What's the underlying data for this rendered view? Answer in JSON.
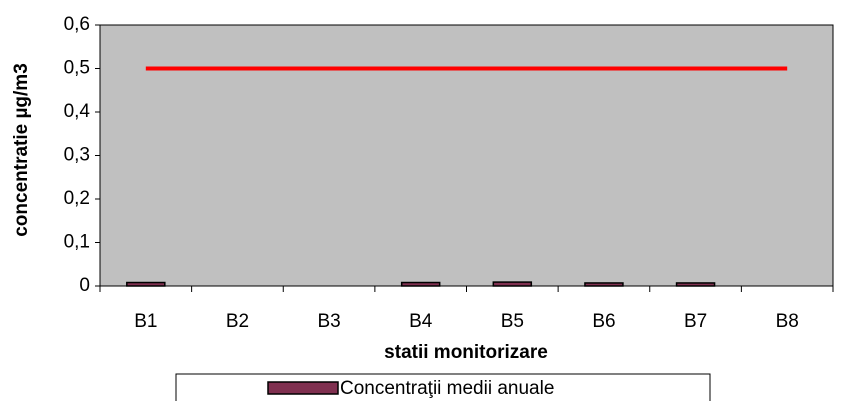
{
  "chart_data": {
    "type": "bar",
    "categories": [
      "B1",
      "B2",
      "B3",
      "B4",
      "B5",
      "B6",
      "B7",
      "B8"
    ],
    "series": [
      {
        "name": "Concentraţii medii anuale",
        "type": "bar",
        "color": "#803050",
        "values": [
          0.008,
          null,
          null,
          0.008,
          0.009,
          0.007,
          0.007,
          null
        ]
      },
      {
        "type": "line",
        "color": "#ff0000",
        "values": [
          0.5,
          0.5,
          0.5,
          0.5,
          0.5,
          0.5,
          0.5,
          0.5
        ]
      }
    ],
    "ylim": [
      0,
      0.6
    ],
    "yticks": [
      0,
      {
        "value": 0.1,
        "label": "0,1"
      },
      {
        "value": 0.2,
        "label": "0,2"
      },
      {
        "value": 0.3,
        "label": "0,3"
      },
      {
        "value": 0.4,
        "label": "0,4"
      },
      {
        "value": 0.5,
        "label": "0,5"
      },
      {
        "value": 0.6,
        "label": "0,6"
      }
    ],
    "x_label": "statii monitorizare",
    "y_label": "concentratie µg/m3",
    "legend": "bottom"
  }
}
